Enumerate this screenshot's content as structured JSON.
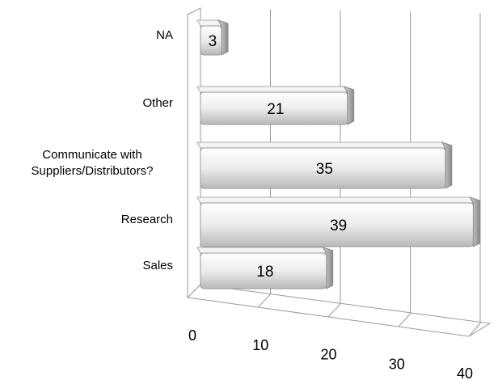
{
  "chart_data": {
    "type": "bar3d",
    "orientation": "horizontal",
    "categories": [
      "Sales",
      "Research",
      "Communicate with Suppliers/Distributors?",
      "Other",
      "NA"
    ],
    "values": [
      18,
      39,
      35,
      21,
      3
    ],
    "color": "#e6e6e6",
    "xlim": [
      0,
      40
    ],
    "xticks": [
      0,
      10,
      20,
      30,
      40
    ],
    "grid": true
  }
}
